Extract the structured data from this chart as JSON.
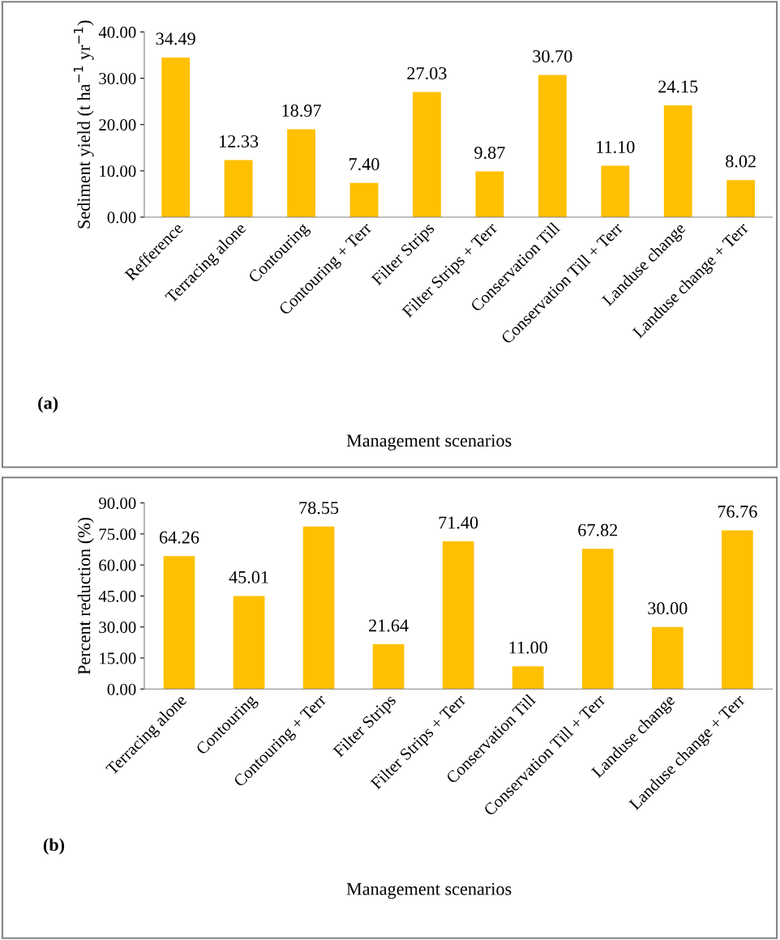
{
  "chart_data": [
    {
      "type": "bar",
      "xlabel": "Management scenarios",
      "ylabel": "Sediment yield (t ha$^{−1}$ yr$^{−1}$)",
      "annotations": [
        "(a)"
      ],
      "categories": [
        "Refference",
        "Terracing alone",
        "Contouring",
        "Contouring + Terr",
        "Filter Strips",
        "Filter Strips + Terr",
        "Conservation Till",
        "Conservation Till + Terr",
        "Landuse change",
        "Landuse change + Terr"
      ],
      "values": [
        34.49,
        12.33,
        18.97,
        7.4,
        27.03,
        9.87,
        30.7,
        11.1,
        24.15,
        8.02
      ],
      "value_labels": [
        "34.49",
        "12.33",
        "18.97",
        "7.40",
        "27.03",
        "9.87",
        "30.70",
        "11.10",
        "24.15",
        "8.02"
      ],
      "color": "#ffc000",
      "ylim": [
        0,
        40
      ],
      "yticks": [
        {
          "value": 0,
          "label": "0.00"
        },
        {
          "value": 10,
          "label": "10.00"
        },
        {
          "value": 20,
          "label": "20.00"
        },
        {
          "value": 30,
          "label": "30.00"
        },
        {
          "value": 40,
          "label": "40.00"
        }
      ],
      "grid": false,
      "legend": false
    },
    {
      "type": "bar",
      "xlabel": "Management scenarios",
      "ylabel": "Percent reduction (%)",
      "annotations": [
        "(b)"
      ],
      "categories": [
        "Terracing alone",
        "Contouring",
        "Contouring + Terr",
        "Filter Strips",
        "Filter Strips + Terr",
        "Conservation Till",
        "Conservation Till + Terr",
        "Landuse change",
        "Landuse change + Terr"
      ],
      "values": [
        64.26,
        45.01,
        78.55,
        21.64,
        71.4,
        11.0,
        67.82,
        30.0,
        76.76
      ],
      "value_labels": [
        "64.26",
        "45.01",
        "78.55",
        "21.64",
        "71.40",
        "11.00",
        "67.82",
        "30.00",
        "76.76"
      ],
      "color": "#ffc000",
      "ylim": [
        0,
        90
      ],
      "yticks": [
        {
          "value": 0,
          "label": "0.00"
        },
        {
          "value": 15,
          "label": "15.00"
        },
        {
          "value": 30,
          "label": "30.00"
        },
        {
          "value": 45,
          "label": "45.00"
        },
        {
          "value": 60,
          "label": "60.00"
        },
        {
          "value": 75,
          "label": "75.00"
        },
        {
          "value": 90,
          "label": "90.00"
        }
      ],
      "grid": false,
      "legend": false
    }
  ]
}
